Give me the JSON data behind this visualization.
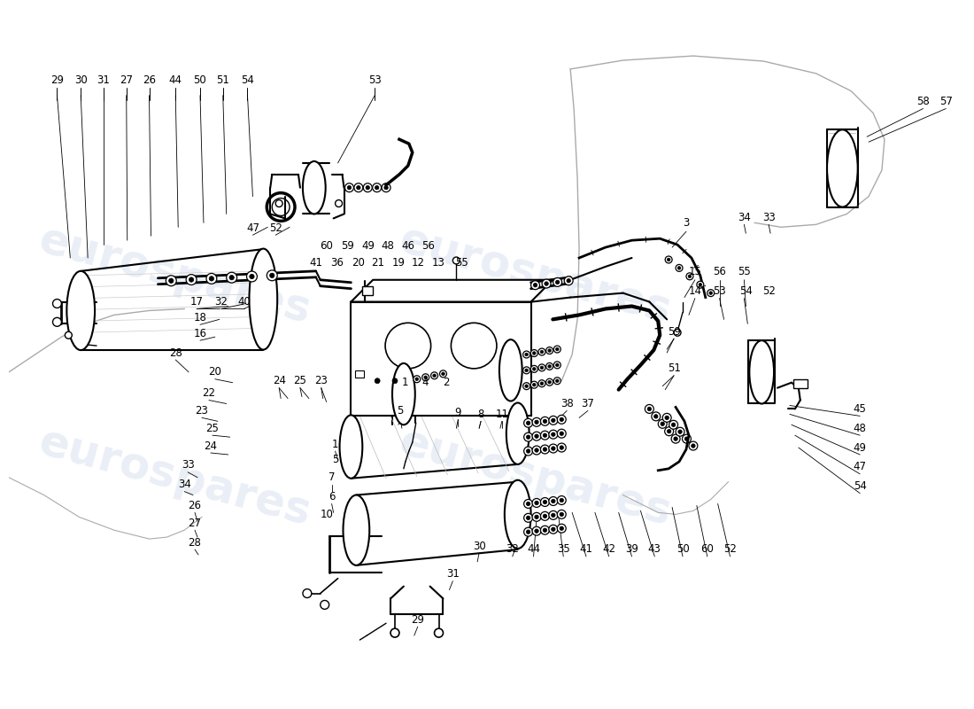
{
  "background_color": "#ffffff",
  "watermark_text": "eurospares",
  "watermark_color": "#c8d4e8",
  "watermark_alpha": 0.38,
  "line_color": "#000000",
  "text_color": "#000000",
  "font_size": 8.5,
  "dpi": 100,
  "fig_width": 11.0,
  "fig_height": 8.0,
  "labels_top": [
    [
      "29",
      55,
      88
    ],
    [
      "30",
      82,
      88
    ],
    [
      "31",
      108,
      88
    ],
    [
      "27",
      134,
      88
    ],
    [
      "26",
      160,
      88
    ],
    [
      "44",
      190,
      88
    ],
    [
      "50",
      218,
      88
    ],
    [
      "51",
      244,
      88
    ],
    [
      "54",
      272,
      88
    ],
    [
      "53",
      417,
      88
    ]
  ],
  "labels_top_right": [
    [
      "58",
      1042,
      112
    ],
    [
      "57",
      1068,
      112
    ]
  ],
  "labels_left_col": [
    [
      "17",
      214,
      340
    ],
    [
      "32",
      242,
      340
    ],
    [
      "40",
      268,
      340
    ],
    [
      "18",
      218,
      358
    ],
    [
      "16",
      218,
      376
    ],
    [
      "28",
      190,
      398
    ],
    [
      "20",
      235,
      420
    ],
    [
      "22",
      228,
      444
    ],
    [
      "23",
      220,
      464
    ],
    [
      "25",
      232,
      484
    ],
    [
      "24",
      230,
      504
    ],
    [
      "33",
      204,
      526
    ],
    [
      "34",
      200,
      548
    ],
    [
      "26",
      212,
      572
    ],
    [
      "27",
      212,
      592
    ],
    [
      "28",
      212,
      614
    ]
  ],
  "labels_center_top_row1": [
    [
      "60",
      362,
      276
    ],
    [
      "59",
      386,
      276
    ],
    [
      "49",
      410,
      276
    ],
    [
      "48",
      432,
      276
    ],
    [
      "46",
      455,
      276
    ],
    [
      "56",
      478,
      276
    ]
  ],
  "labels_center_top_row2": [
    [
      "41",
      350,
      296
    ],
    [
      "36",
      374,
      296
    ],
    [
      "20",
      398,
      296
    ],
    [
      "21",
      420,
      296
    ],
    [
      "19",
      444,
      296
    ],
    [
      "12",
      466,
      296
    ],
    [
      "13",
      490,
      296
    ],
    [
      "55",
      516,
      296
    ]
  ],
  "labels_47_52": [
    [
      "47",
      278,
      256
    ],
    [
      "52",
      304,
      256
    ]
  ],
  "labels_center_mid": [
    [
      "24",
      308,
      430
    ],
    [
      "25",
      332,
      430
    ],
    [
      "23",
      356,
      430
    ],
    [
      "1",
      452,
      432
    ],
    [
      "4",
      474,
      432
    ],
    [
      "2",
      498,
      432
    ],
    [
      "5",
      446,
      464
    ],
    [
      "9",
      512,
      466
    ],
    [
      "8",
      538,
      468
    ],
    [
      "11",
      562,
      468
    ],
    [
      "38",
      636,
      456
    ],
    [
      "37",
      660,
      456
    ]
  ],
  "labels_pump_left": [
    [
      "1",
      372,
      502
    ],
    [
      "5",
      372,
      520
    ],
    [
      "7",
      368,
      540
    ],
    [
      "6",
      368,
      562
    ],
    [
      "10",
      362,
      582
    ]
  ],
  "labels_bottom_row": [
    [
      "30",
      536,
      618
    ],
    [
      "31",
      506,
      650
    ],
    [
      "29",
      466,
      702
    ]
  ],
  "labels_bottom_right_row": [
    [
      "32",
      574,
      622
    ],
    [
      "44",
      598,
      622
    ],
    [
      "35",
      632,
      622
    ],
    [
      "41",
      658,
      622
    ],
    [
      "42",
      684,
      622
    ],
    [
      "39",
      710,
      622
    ],
    [
      "43",
      736,
      622
    ],
    [
      "50",
      768,
      622
    ],
    [
      "60",
      796,
      622
    ],
    [
      "52",
      822,
      622
    ]
  ],
  "labels_right_col": [
    [
      "3",
      772,
      250
    ],
    [
      "15",
      782,
      306
    ],
    [
      "56",
      810,
      306
    ],
    [
      "55",
      838,
      306
    ],
    [
      "14",
      782,
      328
    ],
    [
      "53",
      810,
      328
    ],
    [
      "54",
      840,
      328
    ],
    [
      "52",
      866,
      328
    ],
    [
      "59",
      758,
      374
    ],
    [
      "51",
      758,
      416
    ],
    [
      "45",
      970,
      462
    ],
    [
      "48",
      970,
      484
    ],
    [
      "49",
      970,
      506
    ],
    [
      "47",
      970,
      528
    ],
    [
      "54",
      970,
      550
    ]
  ],
  "labels_34_33": [
    [
      "34",
      838,
      244
    ],
    [
      "33",
      866,
      244
    ]
  ]
}
